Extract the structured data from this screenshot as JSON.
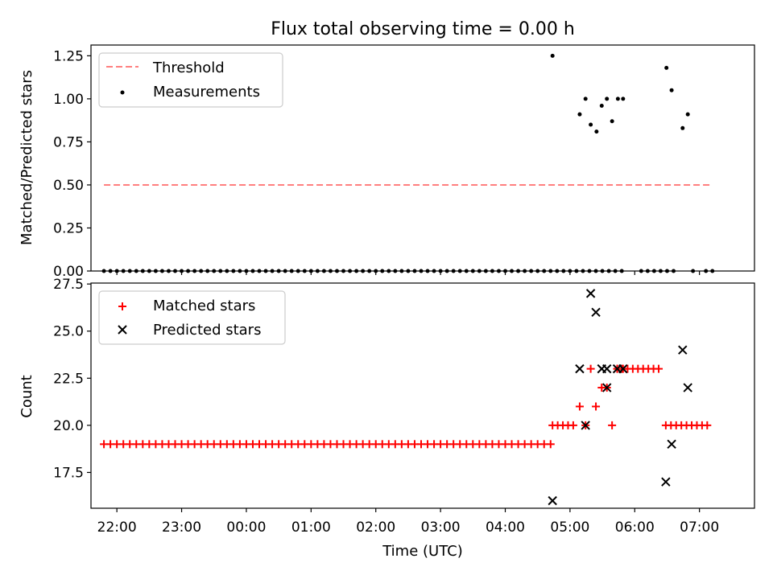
{
  "chart_data": [
    {
      "type": "scatter",
      "title": "Flux total observing time = 0.00 h",
      "xlabel": "",
      "ylabel": "Matched/Predicted stars",
      "ylim": [
        0.0,
        1.3125
      ],
      "xlim_hours_since_21": [
        0.6,
        10.85
      ],
      "yticks": [
        0.0,
        0.25,
        0.5,
        0.75,
        1.0,
        1.25
      ],
      "ytick_labels": [
        "0.00",
        "0.25",
        "0.50",
        "0.75",
        "1.00",
        "1.25"
      ],
      "legend_position": "top-left",
      "legend": [
        {
          "label": "Threshold",
          "color": "#ff7f7f",
          "marker": "dashed-line"
        },
        {
          "label": "Measurements",
          "color": "#000000",
          "marker": "dot"
        }
      ],
      "threshold": {
        "value": 0.5,
        "x_start": 0.8,
        "x_end": 10.2
      },
      "measurements_zero_x": [
        0.8,
        0.9,
        1.0,
        1.1,
        1.2,
        1.3,
        1.4,
        1.5,
        1.6,
        1.7,
        1.8,
        1.9,
        2.0,
        2.1,
        2.2,
        2.3,
        2.4,
        2.5,
        2.6,
        2.7,
        2.8,
        2.9,
        3.0,
        3.1,
        3.2,
        3.3,
        3.4,
        3.5,
        3.6,
        3.7,
        3.8,
        3.9,
        4.0,
        4.1,
        4.2,
        4.3,
        4.4,
        4.5,
        4.6,
        4.7,
        4.8,
        4.9,
        5.0,
        5.1,
        5.2,
        5.3,
        5.4,
        5.5,
        5.6,
        5.7,
        5.8,
        5.9,
        6.0,
        6.1,
        6.2,
        6.3,
        6.4,
        6.5,
        6.6,
        6.7,
        6.8,
        6.9,
        7.0,
        7.1,
        7.2,
        7.3,
        7.4,
        7.5,
        7.6,
        7.7,
        7.8,
        7.9,
        8.0,
        8.1,
        8.2,
        8.3,
        8.4,
        8.5,
        8.6,
        8.7,
        8.8,
        9.1,
        9.2,
        9.3,
        9.4,
        9.5,
        9.6,
        9.9,
        10.1,
        10.2
      ],
      "measurements_nonzero": [
        {
          "x": 7.73,
          "y": 1.25
        },
        {
          "x": 8.15,
          "y": 0.91
        },
        {
          "x": 8.24,
          "y": 1.0
        },
        {
          "x": 8.32,
          "y": 0.85
        },
        {
          "x": 8.41,
          "y": 0.81
        },
        {
          "x": 8.49,
          "y": 0.96
        },
        {
          "x": 8.57,
          "y": 1.0
        },
        {
          "x": 8.65,
          "y": 0.87
        },
        {
          "x": 8.74,
          "y": 1.0
        },
        {
          "x": 8.82,
          "y": 1.0
        },
        {
          "x": 9.49,
          "y": 1.18
        },
        {
          "x": 9.57,
          "y": 1.05
        },
        {
          "x": 9.74,
          "y": 0.83
        },
        {
          "x": 9.82,
          "y": 0.91
        }
      ]
    },
    {
      "type": "scatter",
      "title": "",
      "xlabel": "Time (UTC)",
      "ylabel": "Count",
      "ylim": [
        15.6,
        27.55
      ],
      "xlim_hours_since_21": [
        0.6,
        10.85
      ],
      "yticks": [
        17.5,
        20.0,
        22.5,
        25.0,
        27.5
      ],
      "ytick_labels": [
        "17.5",
        "20.0",
        "22.5",
        "25.0",
        "27.5"
      ],
      "xticks": [
        1,
        2,
        3,
        4,
        5,
        6,
        7,
        8,
        9,
        10
      ],
      "xtick_labels": [
        "22:00",
        "23:00",
        "00:00",
        "01:00",
        "02:00",
        "03:00",
        "04:00",
        "05:00",
        "06:00",
        "07:00"
      ],
      "legend_position": "top-left",
      "legend": [
        {
          "label": "Matched stars",
          "color": "#ff0000",
          "marker": "plus"
        },
        {
          "label": "Predicted stars",
          "color": "#000000",
          "marker": "x"
        }
      ],
      "matched_segments": [
        {
          "x_start": 0.8,
          "x_end": 7.7,
          "step": 0.1,
          "y": 19
        },
        {
          "x_start": 7.73,
          "x_end": 8.1,
          "step": 0.08,
          "y": 20
        },
        {
          "x_start": 9.48,
          "x_end": 10.15,
          "step": 0.08,
          "y": 20
        },
        {
          "x_start": 8.73,
          "x_end": 9.4,
          "step": 0.08,
          "y": 23
        }
      ],
      "matched_points": [
        {
          "x": 8.15,
          "y": 21
        },
        {
          "x": 8.24,
          "y": 20
        },
        {
          "x": 8.32,
          "y": 23
        },
        {
          "x": 8.4,
          "y": 21
        },
        {
          "x": 8.49,
          "y": 22
        },
        {
          "x": 8.57,
          "y": 22
        },
        {
          "x": 8.65,
          "y": 20
        },
        {
          "x": 8.73,
          "y": 23
        },
        {
          "x": 8.82,
          "y": 23
        }
      ],
      "predicted": [
        {
          "x": 7.73,
          "y": 16
        },
        {
          "x": 8.15,
          "y": 23
        },
        {
          "x": 8.24,
          "y": 20
        },
        {
          "x": 8.32,
          "y": 27
        },
        {
          "x": 8.4,
          "y": 26
        },
        {
          "x": 8.49,
          "y": 23
        },
        {
          "x": 8.57,
          "y": 22
        },
        {
          "x": 8.57,
          "y": 23
        },
        {
          "x": 8.73,
          "y": 23
        },
        {
          "x": 8.82,
          "y": 23
        },
        {
          "x": 9.48,
          "y": 17
        },
        {
          "x": 9.57,
          "y": 19
        },
        {
          "x": 9.74,
          "y": 24
        },
        {
          "x": 9.82,
          "y": 22
        }
      ]
    }
  ]
}
